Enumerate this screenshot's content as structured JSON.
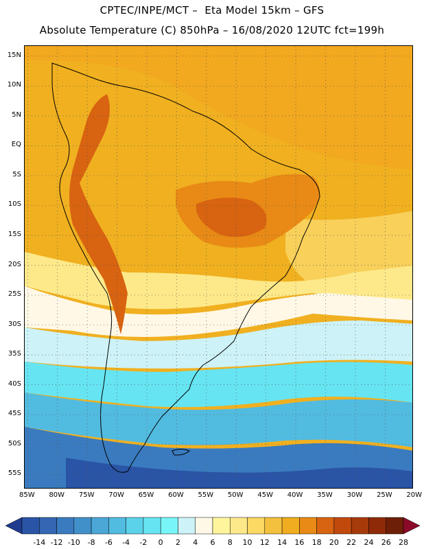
{
  "header": {
    "title_line1": "CPTEC/INPE/MCT –  Eta Model 15km – GFS",
    "title_line2": "Absolute Temperature (C) 850hPa – 16/08/2020 12UTC fct=199h"
  },
  "map": {
    "lat_ticks": [
      "15N",
      "10N",
      "5N",
      "EQ",
      "5S",
      "10S",
      "15S",
      "20S",
      "25S",
      "30S",
      "35S",
      "40S",
      "45S",
      "50S",
      "55S"
    ],
    "lon_ticks": [
      "85W",
      "80W",
      "75W",
      "70W",
      "65W",
      "60W",
      "55W",
      "50W",
      "45W",
      "40W",
      "35W",
      "30W",
      "25W",
      "20W"
    ],
    "lat_range": [
      -57.5,
      16.7
    ],
    "lon_range": [
      -85.5,
      -20.2
    ]
  },
  "legend": {
    "levels": [
      "-14",
      "-12",
      "-10",
      "-8",
      "-6",
      "-4",
      "-2",
      "0",
      "2",
      "4",
      "6",
      "8",
      "10",
      "12",
      "14",
      "16",
      "18",
      "20",
      "22",
      "24",
      "26",
      "28"
    ],
    "colors": [
      "#1f3b8f",
      "#2a54a6",
      "#3466b3",
      "#3a7bbf",
      "#4290c9",
      "#4aa7d6",
      "#52bbe0",
      "#5cd2ea",
      "#66e4f2",
      "#78f6f7",
      "#cdf2f7",
      "#fff8e6",
      "#fff59d",
      "#fde98a",
      "#fbd962",
      "#f4c13e",
      "#efad1f",
      "#e88a15",
      "#d86310",
      "#c2490c",
      "#a73a0a",
      "#8e2a08",
      "#6e1f08",
      "#8b0a2a"
    ]
  }
}
